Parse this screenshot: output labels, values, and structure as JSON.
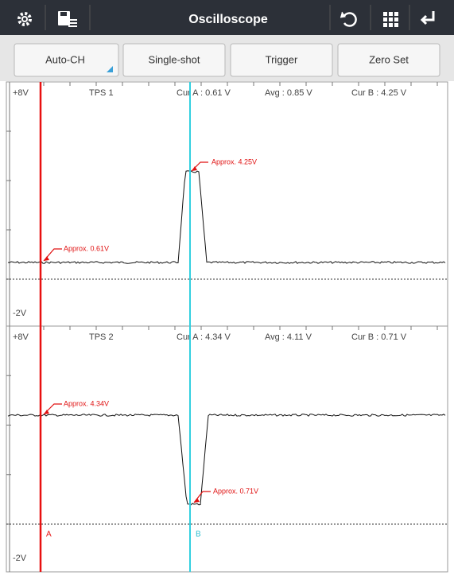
{
  "toolbar": {
    "title": "Oscilloscope"
  },
  "buttons": [
    "Auto-CH",
    "Single-shot",
    "Trigger",
    "Zero Set"
  ],
  "panels": [
    {
      "y_max": "+8V",
      "y_min": "-2V",
      "channel": "TPS 1",
      "cur_a": "Cur A : 0.61 V",
      "avg": "Avg : 0.85 V",
      "cur_b": "Cur B : 4.25 V",
      "annotation_a": "Approx. 0.61V",
      "annotation_b": "Approx. 4.25V"
    },
    {
      "y_max": "+8V",
      "y_min": "-2V",
      "channel": "TPS 2",
      "cur_a": "Cur A : 4.34 V",
      "avg": "Avg : 4.11 V",
      "cur_b": "Cur B : 0.71 V",
      "annotation_a": "Approx. 4.34V",
      "annotation_b": "Approx. 0.71V"
    }
  ],
  "cursors": {
    "a": "A",
    "b": "B"
  }
}
